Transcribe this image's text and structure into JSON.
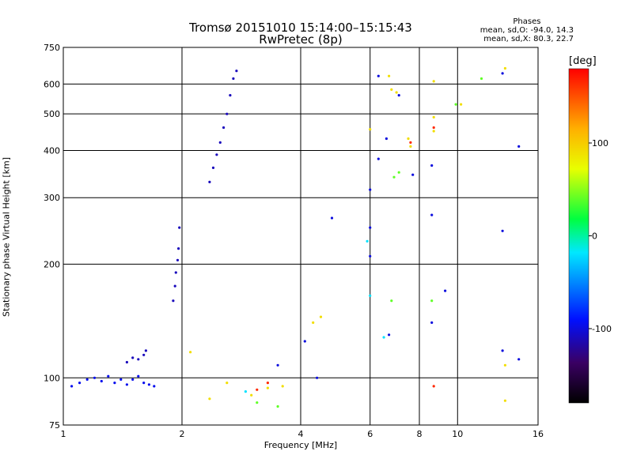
{
  "title": "Tromsø 20151010 15:14:00–15:15:43",
  "subtitle": "RwPretec (8p)",
  "phase_stats": {
    "header": "Phases",
    "line1": "mean, sd,O: -94.0, 14.3",
    "line2": "mean, sd,X:  80.3, 22.7"
  },
  "colorbar": {
    "unit": "[deg]",
    "ticks": [
      100,
      0,
      -100
    ],
    "range": [
      -180,
      180
    ]
  },
  "chart_data": {
    "type": "scatter",
    "xlabel": "Frequency [MHz]",
    "ylabel": "Stationary phase Virtual Height [km]",
    "xscale": "log",
    "yscale": "log",
    "xlim": [
      1,
      16
    ],
    "ylim": [
      75,
      750
    ],
    "xticks": [
      1,
      2,
      4,
      6,
      8,
      10,
      16
    ],
    "yticks": [
      75,
      100,
      200,
      300,
      400,
      500,
      600,
      750
    ],
    "grid": true,
    "point_color_encodes": "phase (deg)",
    "series": [
      {
        "name": "",
        "phase": -95,
        "points": [
          [
            1.05,
            95
          ],
          [
            1.1,
            97
          ],
          [
            1.15,
            99
          ],
          [
            1.2,
            100
          ],
          [
            1.25,
            98
          ],
          [
            1.3,
            101
          ],
          [
            1.35,
            97
          ],
          [
            1.4,
            99
          ],
          [
            1.45,
            96
          ],
          [
            1.5,
            99
          ],
          [
            1.55,
            101
          ],
          [
            1.6,
            97
          ],
          [
            1.65,
            96
          ],
          [
            1.7,
            95
          ]
        ]
      },
      {
        "name": "",
        "phase": -110,
        "points": [
          [
            1.45,
            110
          ],
          [
            1.5,
            113
          ],
          [
            1.55,
            112
          ],
          [
            1.6,
            115
          ],
          [
            1.62,
            118
          ],
          [
            1.9,
            160
          ],
          [
            1.92,
            175
          ],
          [
            1.93,
            190
          ],
          [
            1.95,
            205
          ],
          [
            1.96,
            220
          ],
          [
            1.97,
            250
          ],
          [
            2.35,
            330
          ],
          [
            2.4,
            360
          ],
          [
            2.45,
            390
          ],
          [
            2.5,
            420
          ],
          [
            2.55,
            460
          ],
          [
            2.6,
            500
          ],
          [
            2.65,
            560
          ],
          [
            2.7,
            620
          ],
          [
            2.75,
            650
          ]
        ]
      },
      {
        "name": "",
        "phase": -100,
        "points": [
          [
            3.5,
            108
          ],
          [
            4.1,
            125
          ],
          [
            4.4,
            100
          ],
          [
            4.8,
            265
          ],
          [
            6.0,
            315
          ],
          [
            6.0,
            250
          ],
          [
            6.0,
            210
          ],
          [
            6.3,
            380
          ],
          [
            6.3,
            630
          ],
          [
            6.6,
            430
          ],
          [
            6.7,
            130
          ],
          [
            7.1,
            560
          ],
          [
            7.7,
            345
          ],
          [
            8.6,
            365
          ],
          [
            8.6,
            270
          ],
          [
            8.6,
            140
          ],
          [
            9.3,
            170
          ],
          [
            13.0,
            640
          ],
          [
            13.0,
            245
          ],
          [
            13.0,
            118
          ],
          [
            14.3,
            410
          ],
          [
            14.3,
            112
          ]
        ]
      },
      {
        "name": "",
        "phase": 90,
        "points": [
          [
            2.1,
            117
          ],
          [
            2.35,
            88
          ],
          [
            2.6,
            97
          ],
          [
            3.0,
            90
          ],
          [
            3.3,
            94
          ],
          [
            3.6,
            95
          ],
          [
            4.3,
            140
          ],
          [
            4.5,
            145
          ],
          [
            6.0,
            455
          ],
          [
            6.7,
            630
          ],
          [
            6.8,
            580
          ],
          [
            7.0,
            570
          ],
          [
            7.5,
            430
          ],
          [
            7.6,
            410
          ],
          [
            8.7,
            610
          ],
          [
            8.7,
            490
          ],
          [
            8.7,
            450
          ],
          [
            10.2,
            530
          ],
          [
            13.2,
            660
          ],
          [
            13.2,
            108
          ],
          [
            13.2,
            87
          ]
        ]
      },
      {
        "name": "",
        "phase": 40,
        "points": [
          [
            3.1,
            86
          ],
          [
            3.5,
            84
          ],
          [
            6.8,
            160
          ],
          [
            6.9,
            340
          ],
          [
            7.1,
            350
          ],
          [
            8.6,
            160
          ],
          [
            9.9,
            530
          ],
          [
            11.5,
            620
          ]
        ]
      },
      {
        "name": "",
        "phase": 165,
        "points": [
          [
            3.1,
            93
          ],
          [
            3.3,
            97
          ],
          [
            8.7,
            95
          ],
          [
            8.7,
            460
          ],
          [
            7.6,
            420
          ]
        ]
      },
      {
        "name": "",
        "phase": -20,
        "points": [
          [
            2.9,
            92
          ],
          [
            6.5,
            128
          ],
          [
            6.0,
            165
          ],
          [
            5.9,
            230
          ]
        ]
      }
    ]
  }
}
